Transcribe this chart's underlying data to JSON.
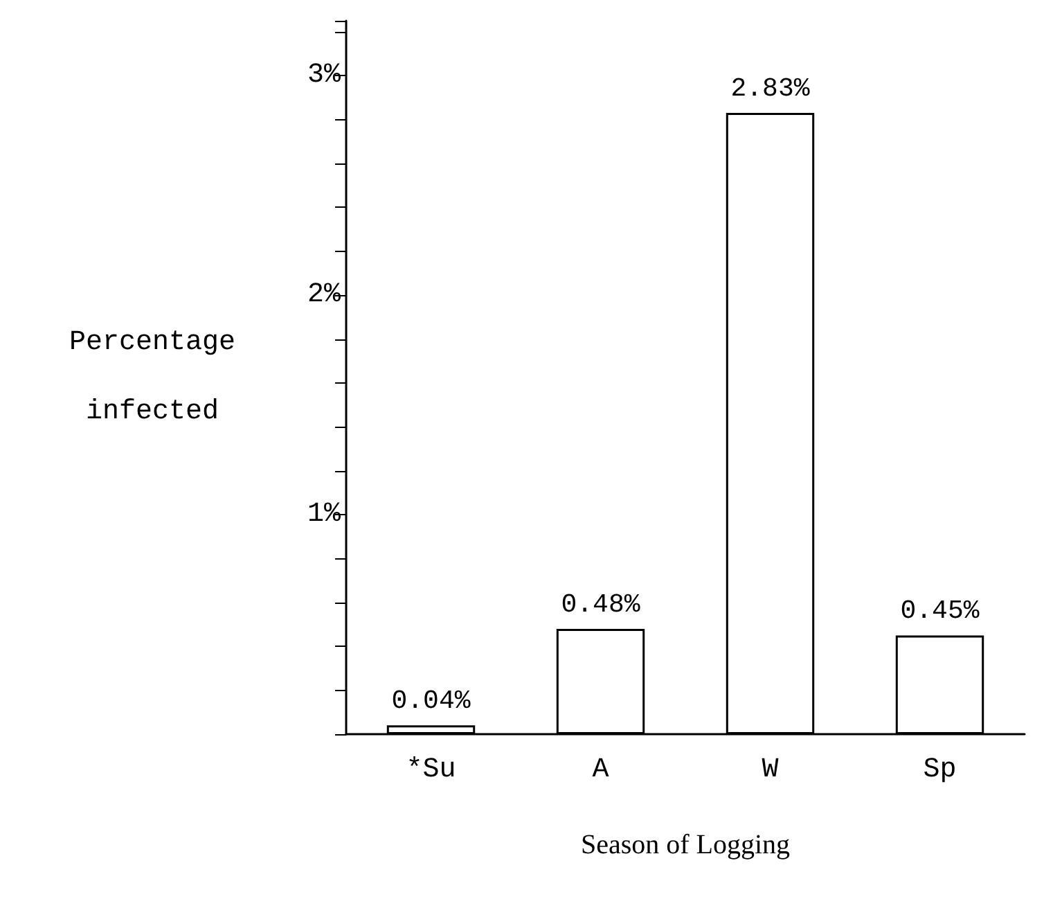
{
  "chart_data": {
    "type": "bar",
    "xlabel": "Season of Logging",
    "ylabel": "Percentage\ninfected",
    "categories": [
      "*Su",
      "A",
      "W",
      "Sp"
    ],
    "values": [
      0.04,
      0.48,
      2.83,
      0.45
    ],
    "value_labels": [
      "0.04%",
      "0.48%",
      "2.83%",
      "0.45%"
    ],
    "color": "#ffffff",
    "ylim": [
      0,
      3.25
    ],
    "yticks": [
      {
        "value": 0,
        "label": null
      },
      {
        "value": 0.2,
        "label": null
      },
      {
        "value": 0.4,
        "label": null
      },
      {
        "value": 0.6,
        "label": null
      },
      {
        "value": 0.8,
        "label": null
      },
      {
        "value": 1,
        "label": "1%"
      },
      {
        "value": 1.2,
        "label": null
      },
      {
        "value": 1.4,
        "label": null
      },
      {
        "value": 1.6,
        "label": null
      },
      {
        "value": 1.8,
        "label": null
      },
      {
        "value": 2,
        "label": "2%"
      },
      {
        "value": 2.2,
        "label": null
      },
      {
        "value": 2.4,
        "label": null
      },
      {
        "value": 2.6,
        "label": null
      },
      {
        "value": 2.8,
        "label": null
      },
      {
        "value": 3,
        "label": "3%"
      },
      {
        "value": 3.2,
        "label": null
      }
    ],
    "grid": false
  }
}
